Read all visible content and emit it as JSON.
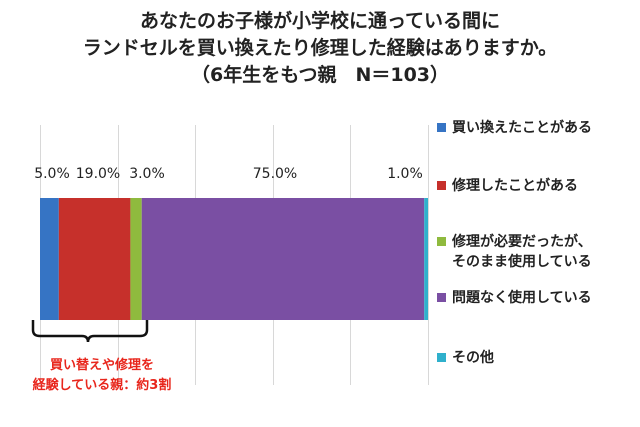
{
  "title_lines": [
    "あなたのお子様が小学校に通っている間に",
    "ランドセルを買い換えたり修理した経験はありますか。",
    "（6年生をもつ親　N＝103）"
  ],
  "chart_data": {
    "type": "bar",
    "orientation": "horizontal",
    "stacked": true,
    "categories": [
      ""
    ],
    "series": [
      {
        "name": "買い換えたことがある",
        "values": [
          5.0
        ],
        "label": "5.0%",
        "color": "#3674c4"
      },
      {
        "name": "修理したことがある",
        "values": [
          19.0
        ],
        "label": "19.0%",
        "color": "#c6302b"
      },
      {
        "name": "修理が必要だったが、\nそのまま使用している",
        "values": [
          3.0
        ],
        "label": "3.0%",
        "color": "#8fba3e"
      },
      {
        "name": "問題なく使用している",
        "values": [
          75.0
        ],
        "label": "75.0%",
        "color": "#7a4fa3"
      },
      {
        "name": "その他",
        "values": [
          1.0
        ],
        "label": "1.0%",
        "color": "#2fb0cc"
      }
    ],
    "xlim": [
      0,
      103
    ],
    "legend_position": "right",
    "grid": true
  },
  "annotation": "買い替えや修理を\n経験している親：約3割",
  "annotation_color": "#e8261c"
}
